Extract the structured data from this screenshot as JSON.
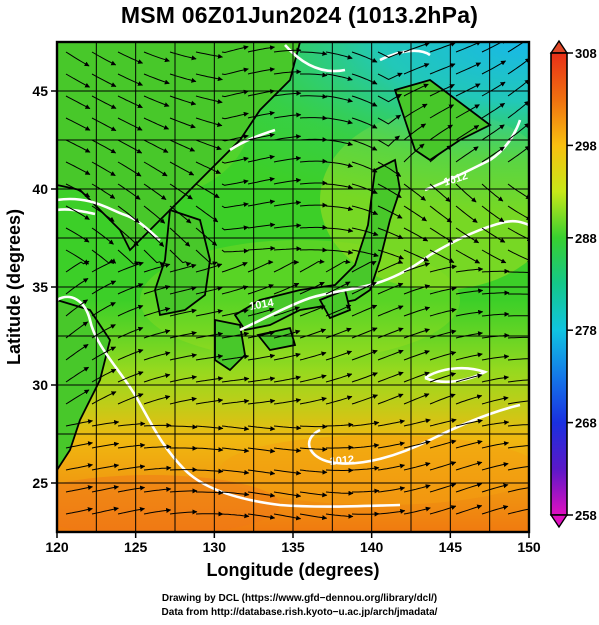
{
  "title": "MSM 06Z01Jun2024 (1013.2hPa)",
  "chart_data": {
    "type": "heatmap",
    "title": "MSM 06Z01Jun2024 (1013.2hPa)",
    "xlabel": "Longitude (degrees)",
    "ylabel": "Latitude  (degrees)",
    "xlim": [
      120,
      150
    ],
    "ylim": [
      22.5,
      47.5
    ],
    "x_ticks": [
      120,
      125,
      130,
      135,
      140,
      145,
      150
    ],
    "y_ticks": [
      25,
      30,
      35,
      40,
      45
    ],
    "grid": true,
    "colorbar": {
      "min": 258,
      "max": 308,
      "ticks": [
        258,
        268,
        278,
        288,
        298,
        308
      ],
      "colors": [
        "#e010c0",
        "#4b1fc8",
        "#1838e8",
        "#10c4e0",
        "#18c860",
        "#36d030",
        "#c8e818",
        "#f8c010",
        "#f07010",
        "#e83018"
      ]
    },
    "contour_labels": [
      {
        "text": "1012",
        "lon": 146.3,
        "lat": 40.9
      },
      {
        "text": "1014",
        "lon": 134.3,
        "lat": 34.6
      },
      {
        "text": "1012",
        "lon": 137.3,
        "lat": 26.7
      }
    ]
  },
  "footer": {
    "line1": "Drawing by DCL (https://www.gfd−dennou.org/library/dcl/)",
    "line2": "Data from http://database.rish.kyoto−u.ac.jp/arch/jmadata/"
  }
}
